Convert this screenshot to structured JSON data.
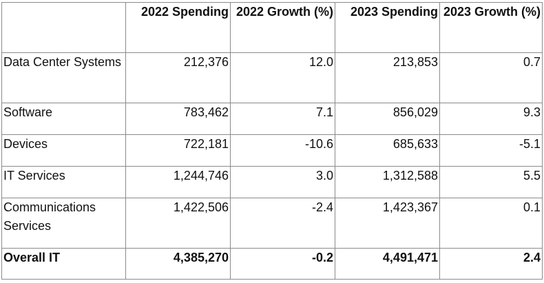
{
  "table": {
    "headers": [
      "",
      "2022 Spending",
      "2022 Growth (%)",
      "2023 Spending",
      "2023 Growth (%)"
    ],
    "rows": [
      {
        "category": "Data Center Systems",
        "spend_2022": "212,376",
        "growth_2022": "12.0",
        "spend_2023": "213,853",
        "growth_2023": "0.7"
      },
      {
        "category": "Software",
        "spend_2022": "783,462",
        "growth_2022": "7.1",
        "spend_2023": "856,029",
        "growth_2023": "9.3"
      },
      {
        "category": "Devices",
        "spend_2022": "722,181",
        "growth_2022": "-10.6",
        "spend_2023": "685,633",
        "growth_2023": "-5.1"
      },
      {
        "category": "IT Services",
        "spend_2022": "1,244,746",
        "growth_2022": "3.0",
        "spend_2023": "1,312,588",
        "growth_2023": "5.5"
      },
      {
        "category": "Communications Services",
        "spend_2022": "1,422,506",
        "growth_2022": "-2.4",
        "spend_2023": "1,423,367",
        "growth_2023": "0.1"
      }
    ],
    "total": {
      "category": "Overall IT",
      "spend_2022": "4,385,270",
      "growth_2022": "-0.2",
      "spend_2023": "4,491,471",
      "growth_2023": "2.4"
    }
  }
}
